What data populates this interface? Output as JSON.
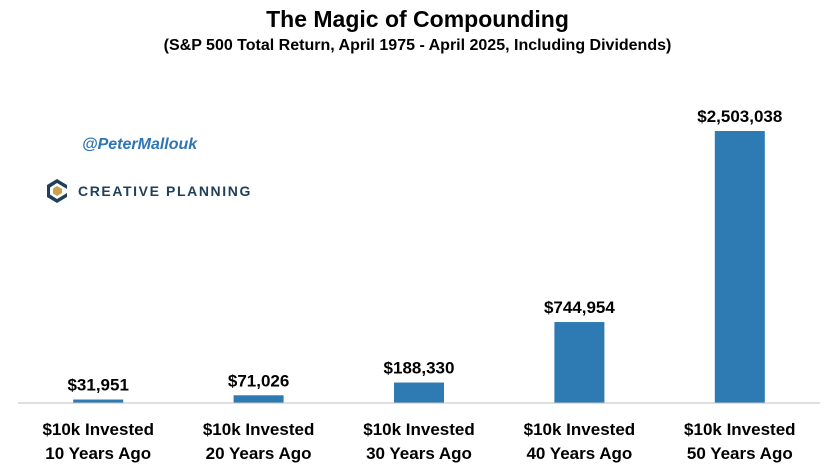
{
  "chart_data": {
    "type": "bar",
    "title": "The Magic of Compounding",
    "subtitle": "(S&P 500 Total Return, April 1975 - April 2025, Including Dividends)",
    "categories": [
      [
        "$10k Invested",
        "10 Years Ago"
      ],
      [
        "$10k Invested",
        "20 Years Ago"
      ],
      [
        "$10k Invested",
        "30 Years Ago"
      ],
      [
        "$10k Invested",
        "40 Years Ago"
      ],
      [
        "$10k Invested",
        "50 Years Ago"
      ]
    ],
    "values": [
      31951,
      71026,
      188330,
      744954,
      2503038
    ],
    "data_labels": [
      "$31,951",
      "$71,026",
      "$188,330",
      "$744,954",
      "$2,503,038"
    ],
    "ylim": [
      0,
      2503038
    ],
    "grid": false,
    "bar_color": "#2e7bb4"
  },
  "annotations": {
    "handle": "@PeterMallouk",
    "logo_text": "CREATIVE PLANNING",
    "logo_colors": {
      "dark": "#1f3f5b",
      "accent": "#c9a24b"
    }
  }
}
